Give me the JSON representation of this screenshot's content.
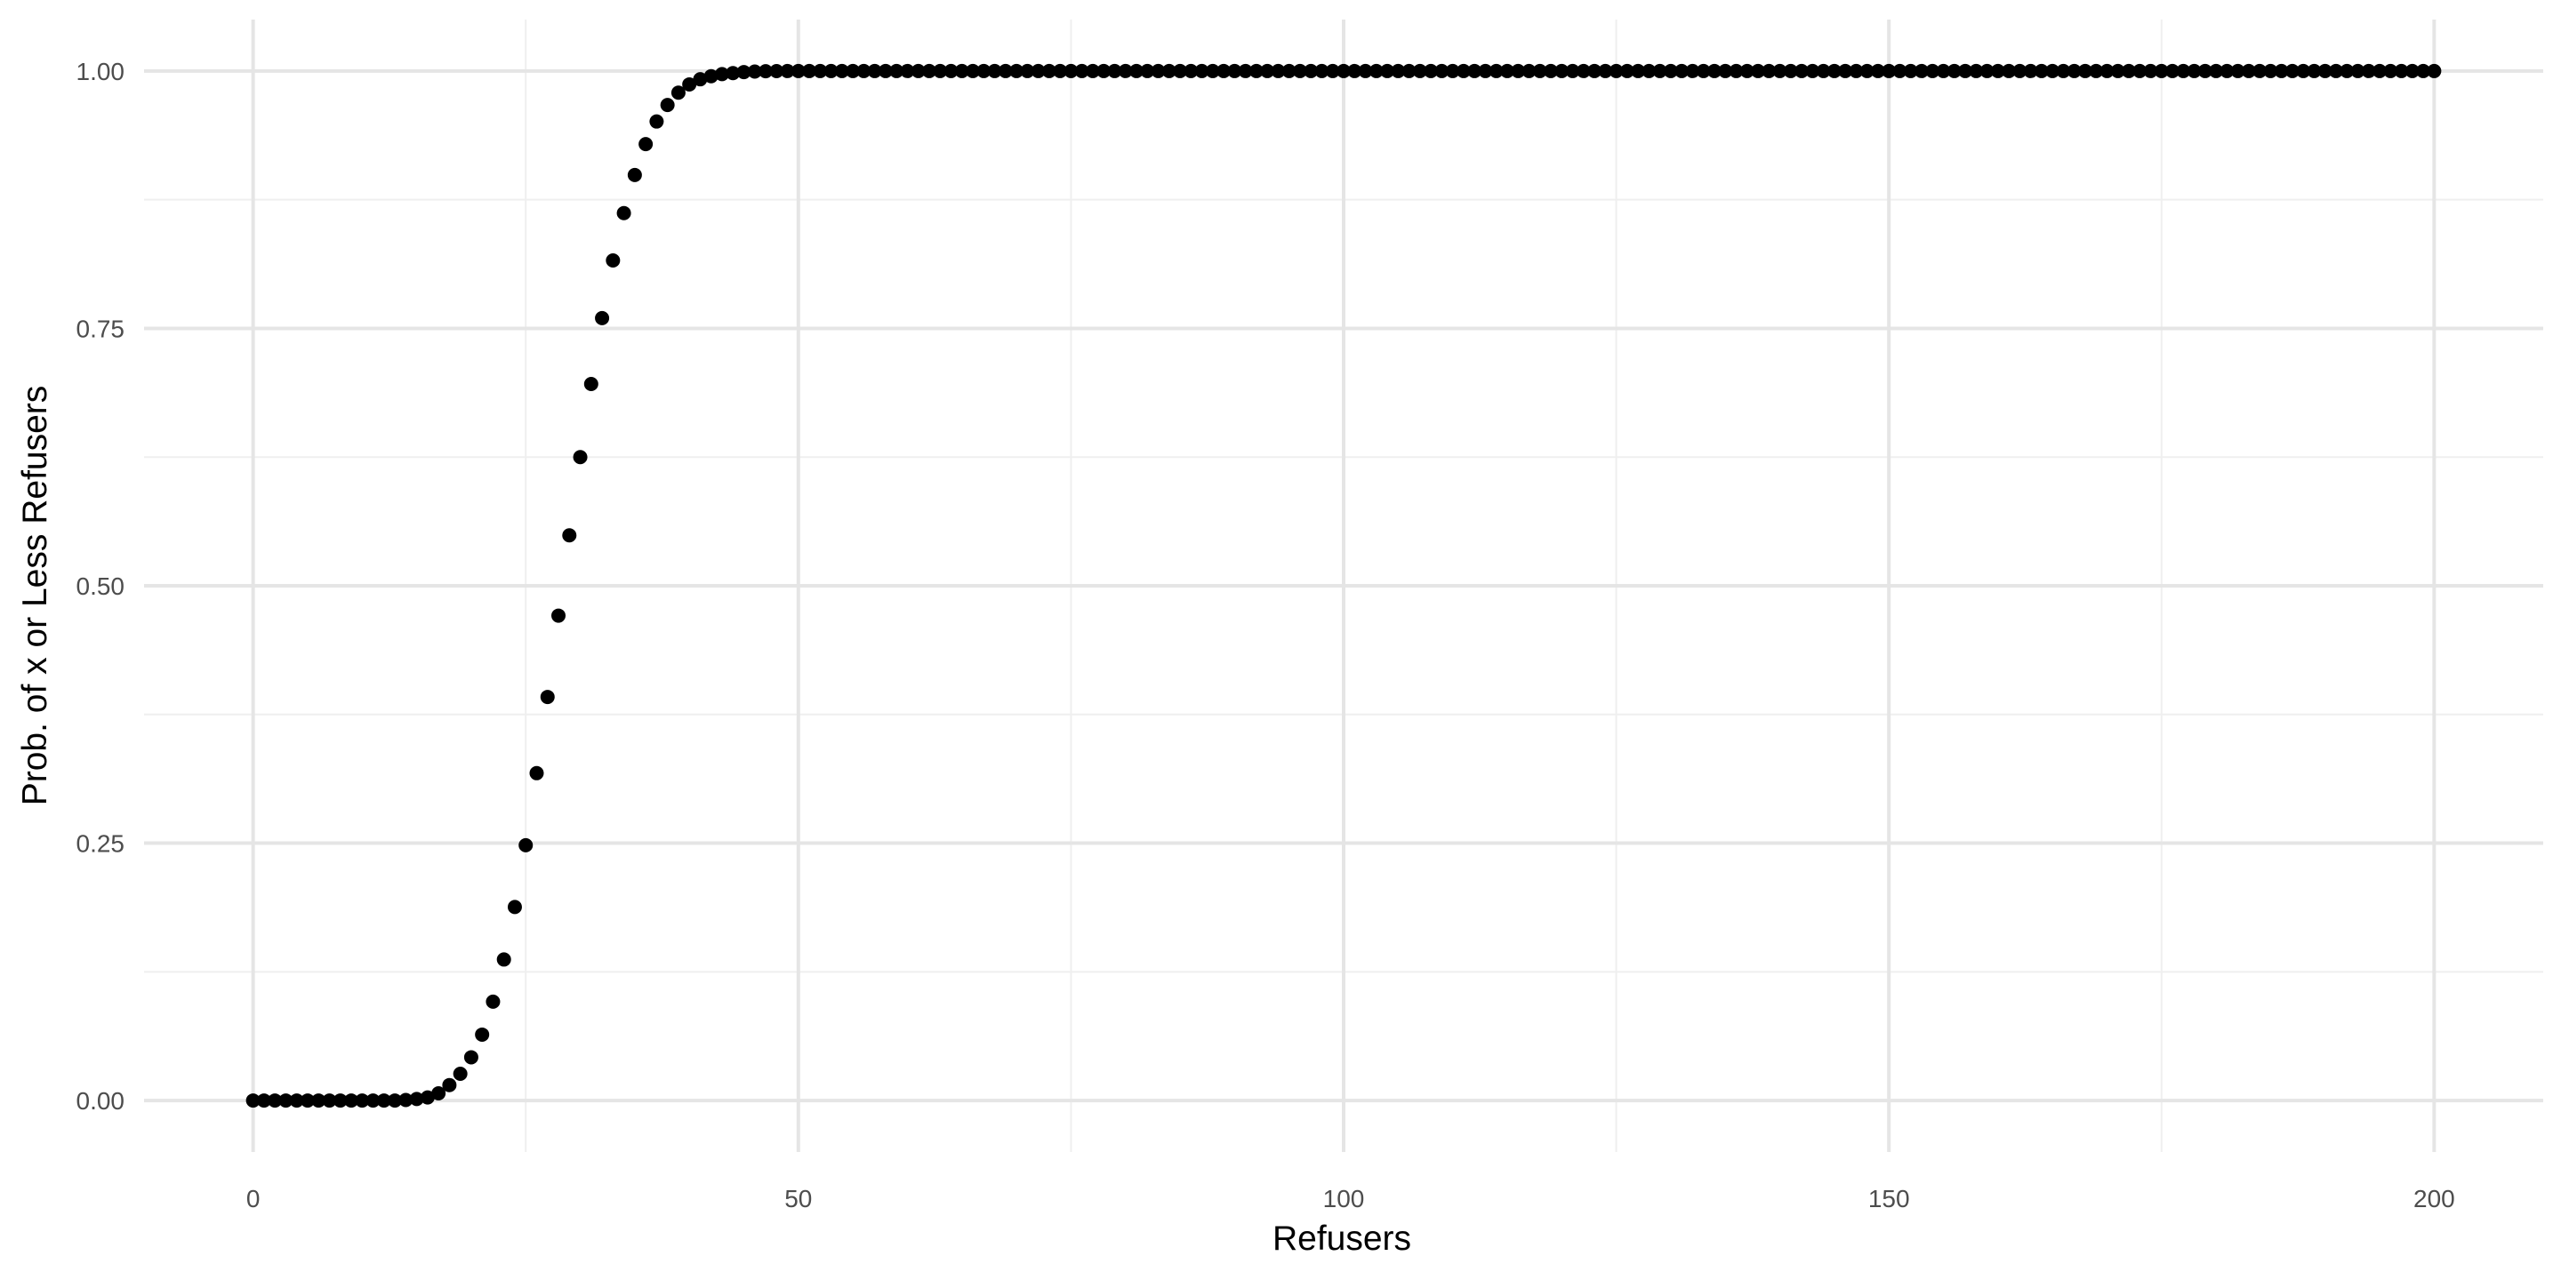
{
  "chart_data": {
    "type": "scatter",
    "title": "",
    "xlabel": "Refusers",
    "ylabel": "Prob. of x or Less Refusers",
    "xlim": [
      -10,
      210
    ],
    "ylim": [
      -0.05,
      1.05
    ],
    "x_ticks": [
      0,
      50,
      100,
      150,
      200
    ],
    "x_tick_labels": [
      "0",
      "50",
      "100",
      "150",
      "200"
    ],
    "y_ticks": [
      0,
      0.25,
      0.5,
      0.75,
      1.0
    ],
    "y_tick_labels": [
      "0.00",
      "0.25",
      "0.50",
      "0.75",
      "1.00"
    ],
    "grid": true,
    "legend": "none",
    "point_color": "#000000",
    "series": [
      {
        "x": [
          0,
          1,
          2,
          3,
          4,
          5,
          6,
          7,
          8,
          9,
          10,
          11,
          12,
          13,
          14,
          15,
          16,
          17,
          18,
          19,
          20,
          21,
          22,
          23,
          24,
          25,
          26,
          27,
          28,
          29,
          30,
          31,
          32,
          33,
          34,
          35,
          36,
          37,
          38,
          39,
          40,
          41,
          42,
          43,
          44,
          45,
          46,
          47,
          48,
          49,
          50
        ],
        "values": [
          0,
          0,
          0,
          0,
          0,
          0,
          0,
          0,
          0,
          0,
          0,
          0,
          0,
          0,
          0.0005,
          0.0015,
          0.003,
          0.007,
          0.015,
          0.026,
          0.042,
          0.064,
          0.096,
          0.137,
          0.188,
          0.248,
          0.318,
          0.392,
          0.471,
          0.549,
          0.625,
          0.696,
          0.76,
          0.816,
          0.862,
          0.899,
          0.929,
          0.951,
          0.967,
          0.979,
          0.987,
          0.992,
          0.995,
          0.997,
          0.998,
          0.999,
          0.9995,
          0.9998,
          0.9999,
          1,
          1
        ]
      }
    ],
    "constant_tail": {
      "x_from": 51,
      "x_to": 200,
      "value": 1
    }
  }
}
